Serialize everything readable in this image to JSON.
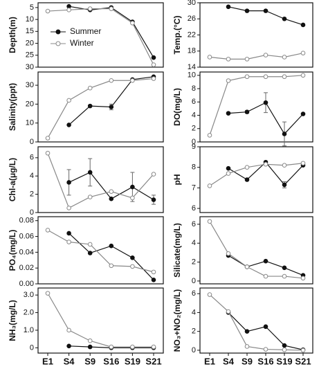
{
  "chart_data": [
    {
      "type": "line",
      "ylabel": "Depth(m)",
      "ylim": [
        3,
        30
      ],
      "y_inverted": true,
      "yticks": [
        5,
        10,
        15,
        20,
        25,
        30
      ],
      "legend": "upper-left",
      "series": [
        {
          "name": "Summer",
          "color": "#111111",
          "marker": "filled",
          "values": [
            null,
            4.5,
            6,
            5,
            11,
            26
          ]
        },
        {
          "name": "Winter",
          "color": "#888888",
          "marker": "open",
          "values": [
            6.5,
            6,
            5.5,
            5.5,
            11.5,
            29
          ]
        }
      ]
    },
    {
      "type": "line",
      "ylabel": "Temp.(°C)",
      "ylim": [
        14,
        30
      ],
      "yticks": [
        14,
        18,
        22,
        26,
        30
      ],
      "series": [
        {
          "color": "#111111",
          "marker": "filled",
          "values": [
            null,
            29,
            28,
            28,
            26,
            24.5
          ]
        },
        {
          "color": "#888888",
          "marker": "open",
          "values": [
            16.5,
            16,
            16,
            17,
            16.5,
            17.5
          ]
        }
      ]
    },
    {
      "type": "line",
      "ylabel": "Salinity(ppt)",
      "ylim": [
        0,
        37
      ],
      "yticks": [
        0,
        10,
        20,
        30
      ],
      "series": [
        {
          "color": "#111111",
          "marker": "filled",
          "values": [
            null,
            9,
            19,
            18.5,
            33,
            34.5
          ],
          "errors": [
            null,
            0,
            0,
            1.5,
            0,
            0
          ]
        },
        {
          "color": "#888888",
          "marker": "open",
          "values": [
            2,
            22,
            28.5,
            32.5,
            32.5,
            33.5
          ]
        }
      ]
    },
    {
      "type": "line",
      "ylabel": "DO(mg/L)",
      "ylim": [
        0,
        10.5
      ],
      "yticks": [
        0,
        2,
        4,
        6,
        8,
        10
      ],
      "series": [
        {
          "color": "#111111",
          "marker": "filled",
          "values": [
            null,
            4.3,
            4.5,
            5.9,
            1.2,
            4.2
          ],
          "errors": [
            null,
            0,
            0.2,
            1.5,
            1.8,
            0
          ]
        },
        {
          "color": "#888888",
          "marker": "open",
          "values": [
            1,
            9.2,
            9.8,
            9.8,
            9.8,
            10
          ]
        }
      ]
    },
    {
      "type": "line",
      "ylabel": "Chl-a(μg/L)",
      "ylim": [
        0,
        7.2
      ],
      "yticks": [
        0,
        2,
        4,
        6
      ],
      "series": [
        {
          "color": "#111111",
          "marker": "filled",
          "values": [
            null,
            3.3,
            4.4,
            1.5,
            2.8,
            1.4
          ],
          "errors": [
            null,
            1.4,
            1.5,
            0,
            1.6,
            0.5
          ]
        },
        {
          "color": "#888888",
          "marker": "open",
          "values": [
            6.5,
            0.5,
            1.7,
            2.3,
            1.6,
            4.2
          ]
        }
      ]
    },
    {
      "type": "line",
      "ylabel": "pH",
      "ylim": [
        5.8,
        9
      ],
      "yticks": [
        6,
        7,
        8,
        9
      ],
      "series": [
        {
          "color": "#111111",
          "marker": "filled",
          "values": [
            null,
            7.95,
            7.4,
            8.25,
            7.15,
            8.1
          ],
          "errors": [
            null,
            0,
            0,
            0,
            0.15,
            0
          ]
        },
        {
          "color": "#888888",
          "marker": "open",
          "values": [
            7.1,
            7.7,
            8.0,
            8.15,
            8.1,
            8.2
          ]
        }
      ]
    },
    {
      "type": "line",
      "ylabel": "PO₄(mg/L)",
      "ylim": [
        0,
        0.085
      ],
      "yticks": [
        {
          "value": 0,
          "label": "0.00"
        },
        {
          "value": 0.02,
          "label": "0.02"
        },
        {
          "value": 0.04,
          "label": "0.04"
        },
        {
          "value": 0.06,
          "label": "0.06"
        },
        {
          "value": 0.08,
          "label": "0.08"
        }
      ],
      "series": [
        {
          "color": "#111111",
          "marker": "filled",
          "values": [
            null,
            0.064,
            0.039,
            0.048,
            0.033,
            0.005
          ]
        },
        {
          "color": "#888888",
          "marker": "open",
          "values": [
            0.068,
            0.053,
            0.05,
            0.023,
            0.022,
            0.015
          ]
        }
      ]
    },
    {
      "type": "line",
      "ylabel": "Silicate(mg/L)",
      "ylim": [
        -0.3,
        6.8
      ],
      "yticks": [
        0,
        2,
        4,
        6
      ],
      "series": [
        {
          "color": "#111111",
          "marker": "filled",
          "values": [
            null,
            2.7,
            1.5,
            2.1,
            1.4,
            0.6
          ]
        },
        {
          "color": "#888888",
          "marker": "open",
          "values": [
            6.3,
            2.9,
            1.5,
            0.5,
            0.5,
            0.3
          ]
        }
      ]
    },
    {
      "type": "line",
      "ylabel": "NH₃(mg/L)",
      "ylim": [
        -0.3,
        3.4
      ],
      "yticks": [
        0,
        {
          "value": 1,
          "label": "1.0"
        },
        {
          "value": 2,
          "label": "2.0"
        },
        {
          "value": 3,
          "label": "3.0"
        }
      ],
      "categories": [
        "E1",
        "S4",
        "S9",
        "S16",
        "S19",
        "S21"
      ],
      "series": [
        {
          "color": "#111111",
          "marker": "filled",
          "values": [
            null,
            0.1,
            0.05,
            0,
            0,
            0
          ]
        },
        {
          "color": "#888888",
          "marker": "open",
          "values": [
            3.1,
            1.0,
            0.4,
            0.05,
            0.05,
            0.05
          ]
        }
      ]
    },
    {
      "type": "line",
      "ylabel": "NO₃+NO₂(mg/L)",
      "ylim": [
        -0.3,
        6.6
      ],
      "yticks": [
        0,
        2,
        4,
        6
      ],
      "categories": [
        "E1",
        "S4",
        "S9",
        "S16",
        "S19",
        "S21"
      ],
      "series": [
        {
          "color": "#111111",
          "marker": "filled",
          "values": [
            null,
            4.0,
            2.0,
            2.5,
            0.5,
            0.05
          ]
        },
        {
          "color": "#888888",
          "marker": "open",
          "values": [
            5.9,
            4.1,
            0.4,
            0.1,
            0.05,
            0
          ]
        }
      ]
    }
  ]
}
